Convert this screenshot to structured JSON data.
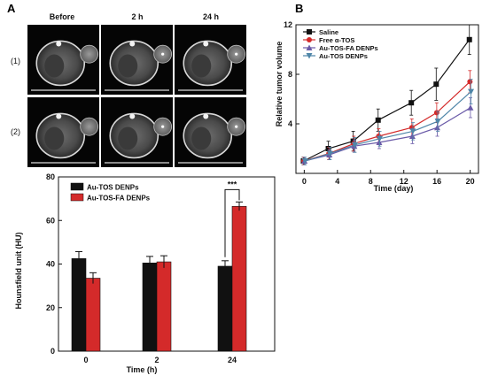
{
  "panel_a": {
    "label": "A",
    "ct_columns": [
      "Before",
      "2 h",
      "24 h"
    ],
    "ct_rows": [
      "(1)",
      "(2)"
    ]
  },
  "panel_b": {
    "label": "B"
  },
  "colors": {
    "black": "#111111",
    "red": "#d42a2a",
    "purple": "#6a5aa8",
    "teal": "#4f86a8"
  },
  "chart_data": [
    {
      "type": "bar",
      "title": "",
      "xlabel": "Time (h)",
      "ylabel": "Hounsfield unit (HU)",
      "ylim": [
        0,
        80
      ],
      "yticks": [
        "0",
        "20",
        "40",
        "60",
        "80"
      ],
      "categories": [
        "0",
        "2",
        "24"
      ],
      "series": [
        {
          "name": "Au-TOS DENPs",
          "color": "#111111",
          "values": [
            42.5,
            40.5,
            39
          ],
          "errors": [
            3.2,
            3,
            2.5
          ]
        },
        {
          "name": "Au-TOS-FA DENPs",
          "color": "#d42a2a",
          "values": [
            33.5,
            41,
            66.5
          ],
          "errors": [
            2.5,
            2.8,
            2
          ]
        }
      ],
      "annotations": [
        {
          "text": "***",
          "between": [
            "Au-TOS DENPs",
            "Au-TOS-FA DENPs"
          ],
          "category": "24"
        }
      ],
      "legend": "top-left"
    },
    {
      "type": "line",
      "title": "",
      "xlabel": "Time (day)",
      "ylabel": "Relative tumor volume",
      "xlim": [
        -1,
        21
      ],
      "ylim": [
        0,
        12
      ],
      "xticks": [
        "0",
        "4",
        "8",
        "12",
        "16",
        "20"
      ],
      "yticks": [
        "4",
        "8",
        "12"
      ],
      "x": [
        0,
        3,
        6,
        9,
        13,
        16,
        20
      ],
      "series": [
        {
          "name": "Saline",
          "color": "#111111",
          "marker": "square",
          "values": [
            1.0,
            2.0,
            2.6,
            4.3,
            5.7,
            7.2,
            10.8
          ],
          "errors": [
            0.3,
            0.6,
            0.8,
            0.9,
            1.0,
            1.3,
            1.2
          ]
        },
        {
          "name": "Free α-TOS",
          "color": "#d42a2a",
          "marker": "circle",
          "values": [
            1.0,
            1.6,
            2.4,
            3.0,
            3.7,
            4.9,
            7.4
          ],
          "errors": [
            0.3,
            0.5,
            0.6,
            0.6,
            0.7,
            0.8,
            0.9
          ]
        },
        {
          "name": "Au-TOS-FA DENPs",
          "color": "#6a5aa8",
          "marker": "triangle-up",
          "values": [
            1.0,
            1.5,
            2.2,
            2.5,
            3.0,
            3.7,
            5.3
          ],
          "errors": [
            0.3,
            0.4,
            0.5,
            0.5,
            0.6,
            0.7,
            0.8
          ]
        },
        {
          "name": "Au-TOS DENPs",
          "color": "#4f86a8",
          "marker": "triangle-down",
          "values": [
            1.0,
            1.6,
            2.3,
            2.8,
            3.4,
            4.2,
            6.6
          ],
          "errors": [
            0.3,
            0.5,
            0.6,
            0.6,
            0.7,
            0.8,
            1.0
          ]
        }
      ],
      "legend": "top-left"
    }
  ]
}
